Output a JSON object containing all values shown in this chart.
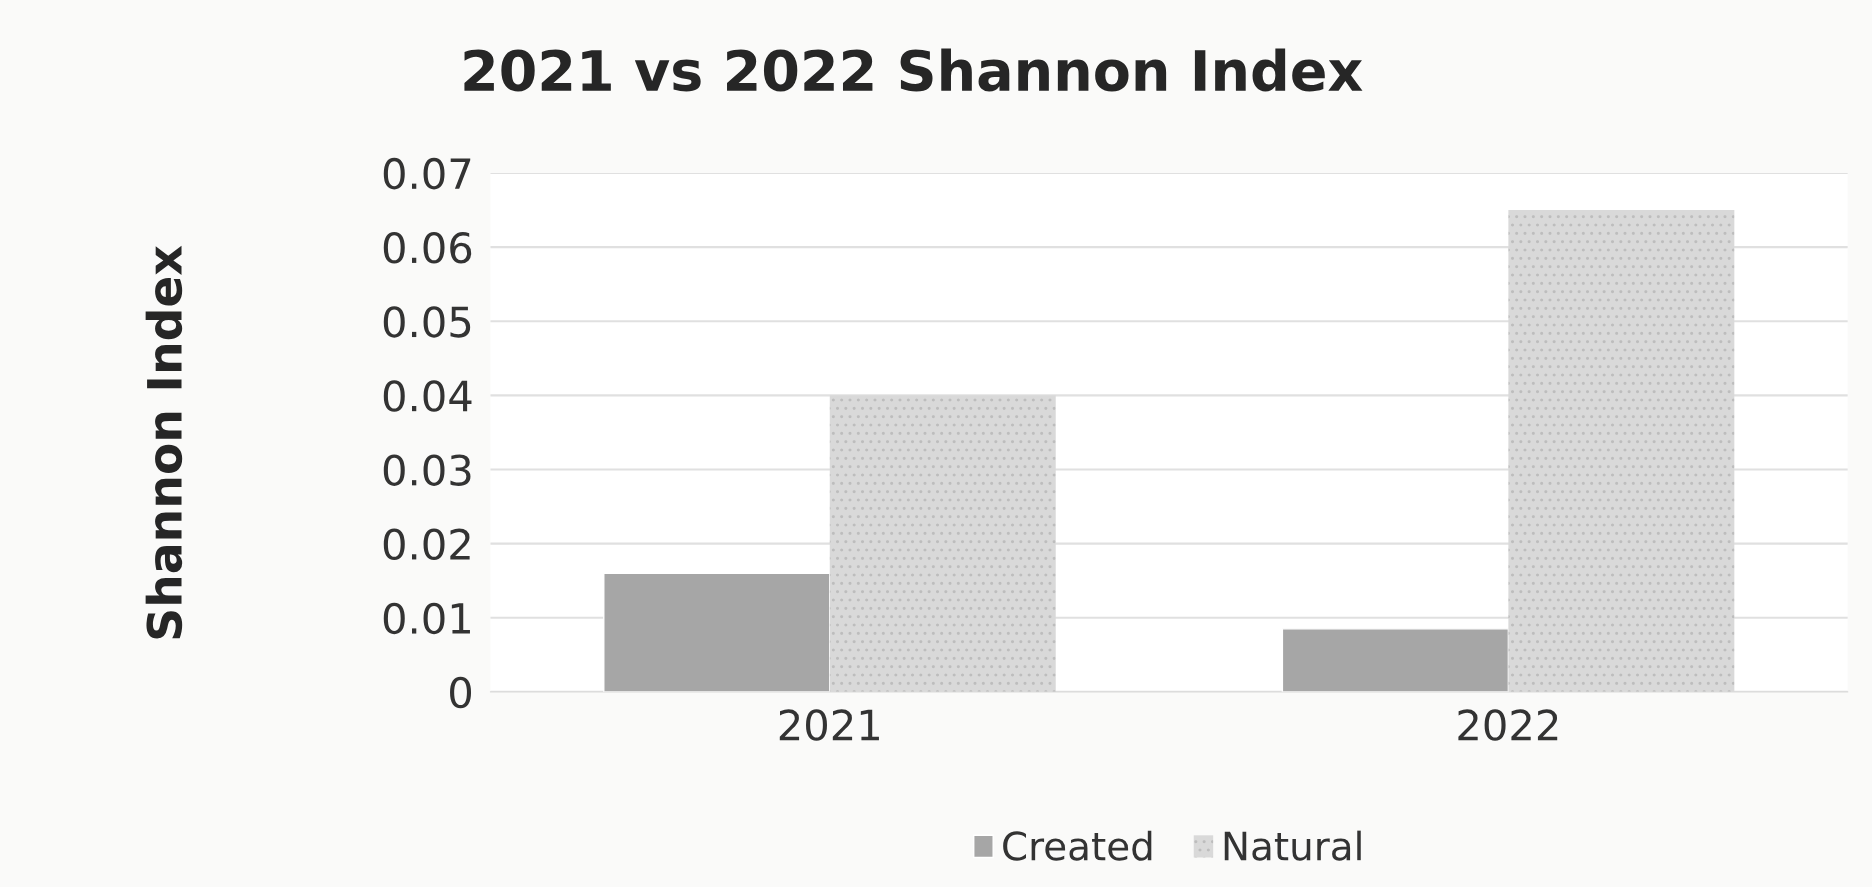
{
  "chart_data": {
    "type": "bar",
    "title": "2021 vs 2022 Shannon Index",
    "ylabel": "Shannon Index",
    "categories": [
      "2021",
      "2022"
    ],
    "series": [
      {
        "name": "Created",
        "color": "#a6a6a6",
        "values": [
          0.016,
          0.0085
        ]
      },
      {
        "name": "Natural",
        "color": "#d9d9d9",
        "values": [
          0.04,
          0.065
        ]
      }
    ],
    "ylim": [
      0,
      0.07
    ],
    "yticks": [
      0,
      0.01,
      0.02,
      0.03,
      0.04,
      0.05,
      0.06,
      0.07
    ],
    "grid": "y",
    "legend": "bottom"
  }
}
